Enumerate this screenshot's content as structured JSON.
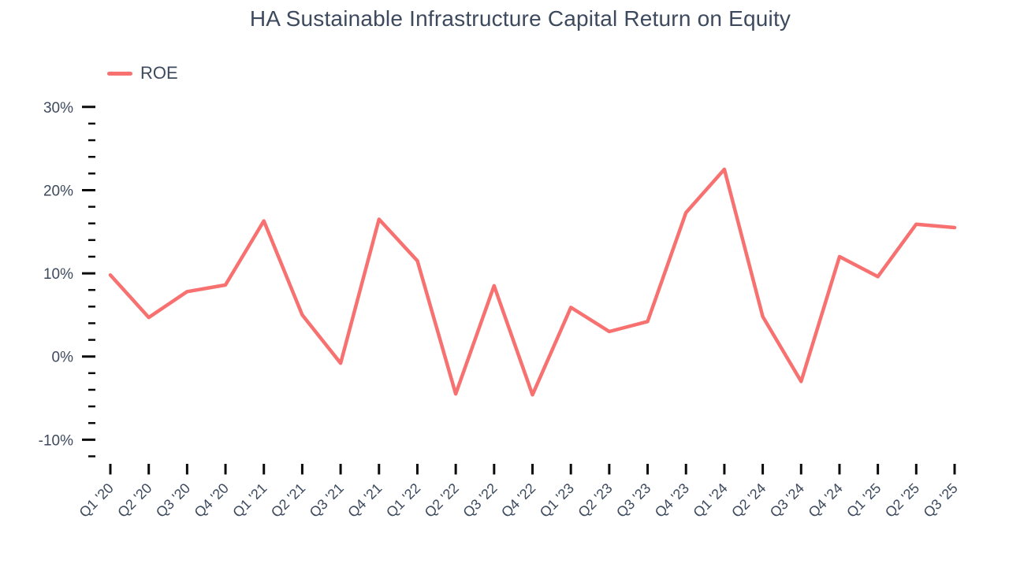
{
  "title": "HA Sustainable Infrastructure Capital Return on Equity",
  "legend": [
    {
      "label": "ROE",
      "color": "#f87171"
    }
  ],
  "colors": {
    "line": "#f87171",
    "text": "#3d4a5e",
    "tick": "#0b0b0b",
    "background": "#ffffff"
  },
  "chart_data": {
    "type": "line",
    "title": "HA Sustainable Infrastructure Capital Return on Equity",
    "xlabel": "",
    "ylabel": "",
    "unit": "%",
    "grid": false,
    "legend_position": "top-left",
    "categories": [
      "Q1 '20",
      "Q2 '20",
      "Q3 '20",
      "Q4 '20",
      "Q1 '21",
      "Q2 '21",
      "Q3 '21",
      "Q4 '21",
      "Q1 '22",
      "Q2 '22",
      "Q3 '22",
      "Q4 '22",
      "Q1 '23",
      "Q2 '23",
      "Q3 '23",
      "Q4 '23",
      "Q1 '24",
      "Q2 '24",
      "Q3 '24",
      "Q4 '24",
      "Q1 '25",
      "Q2 '25",
      "Q3 '25"
    ],
    "series": [
      {
        "name": "ROE",
        "color": "#f87171",
        "values": [
          9.8,
          4.7,
          7.8,
          8.6,
          16.3,
          5.0,
          -0.8,
          16.5,
          11.5,
          -4.5,
          8.5,
          -4.6,
          5.9,
          3.0,
          4.2,
          17.3,
          22.5,
          4.8,
          -3.0,
          12.0,
          9.6,
          15.9,
          15.5
        ]
      }
    ],
    "y_axis": {
      "min": -12,
      "max": 30,
      "minor_step": 2,
      "major_ticks": [
        {
          "value": 30,
          "label": "30%"
        },
        {
          "value": 20,
          "label": "20%"
        },
        {
          "value": 10,
          "label": "10%"
        },
        {
          "value": 0,
          "label": "0%"
        },
        {
          "value": -10,
          "label": "-10%"
        }
      ]
    }
  }
}
